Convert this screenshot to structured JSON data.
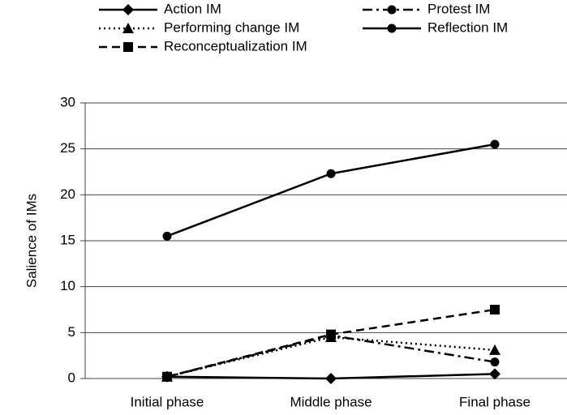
{
  "chart_data": {
    "type": "line",
    "y_label": "Salience of IMs",
    "categories": [
      "Initial phase",
      "Middle phase",
      "Final phase"
    ],
    "series": [
      {
        "name": "Action IM",
        "color": "#000000",
        "line_style": "solid",
        "marker": "diamond",
        "values": [
          0.2,
          0,
          0.5
        ]
      },
      {
        "name": "Protest IM",
        "color": "#000000",
        "line_style": "dashdot",
        "marker": "circle",
        "values": [
          0.2,
          4.7,
          1.8
        ]
      },
      {
        "name": "Performing change IM",
        "color": "#000000",
        "line_style": "dotted",
        "marker": "triangle",
        "values": [
          0.2,
          4.5,
          3.1
        ]
      },
      {
        "name": "Reflection IM",
        "color": "#000000",
        "line_style": "solid",
        "marker": "circle",
        "values": [
          15.5,
          22.3,
          25.5
        ]
      },
      {
        "name": "Reconceptualization IM",
        "color": "#000000",
        "line_style": "dashed",
        "marker": "square",
        "values": [
          0.2,
          4.8,
          7.5
        ]
      }
    ],
    "ylim": [
      0,
      30
    ],
    "yticks": [
      0,
      5,
      10,
      15,
      20,
      25,
      30
    ],
    "grid": true,
    "legend": "top"
  }
}
